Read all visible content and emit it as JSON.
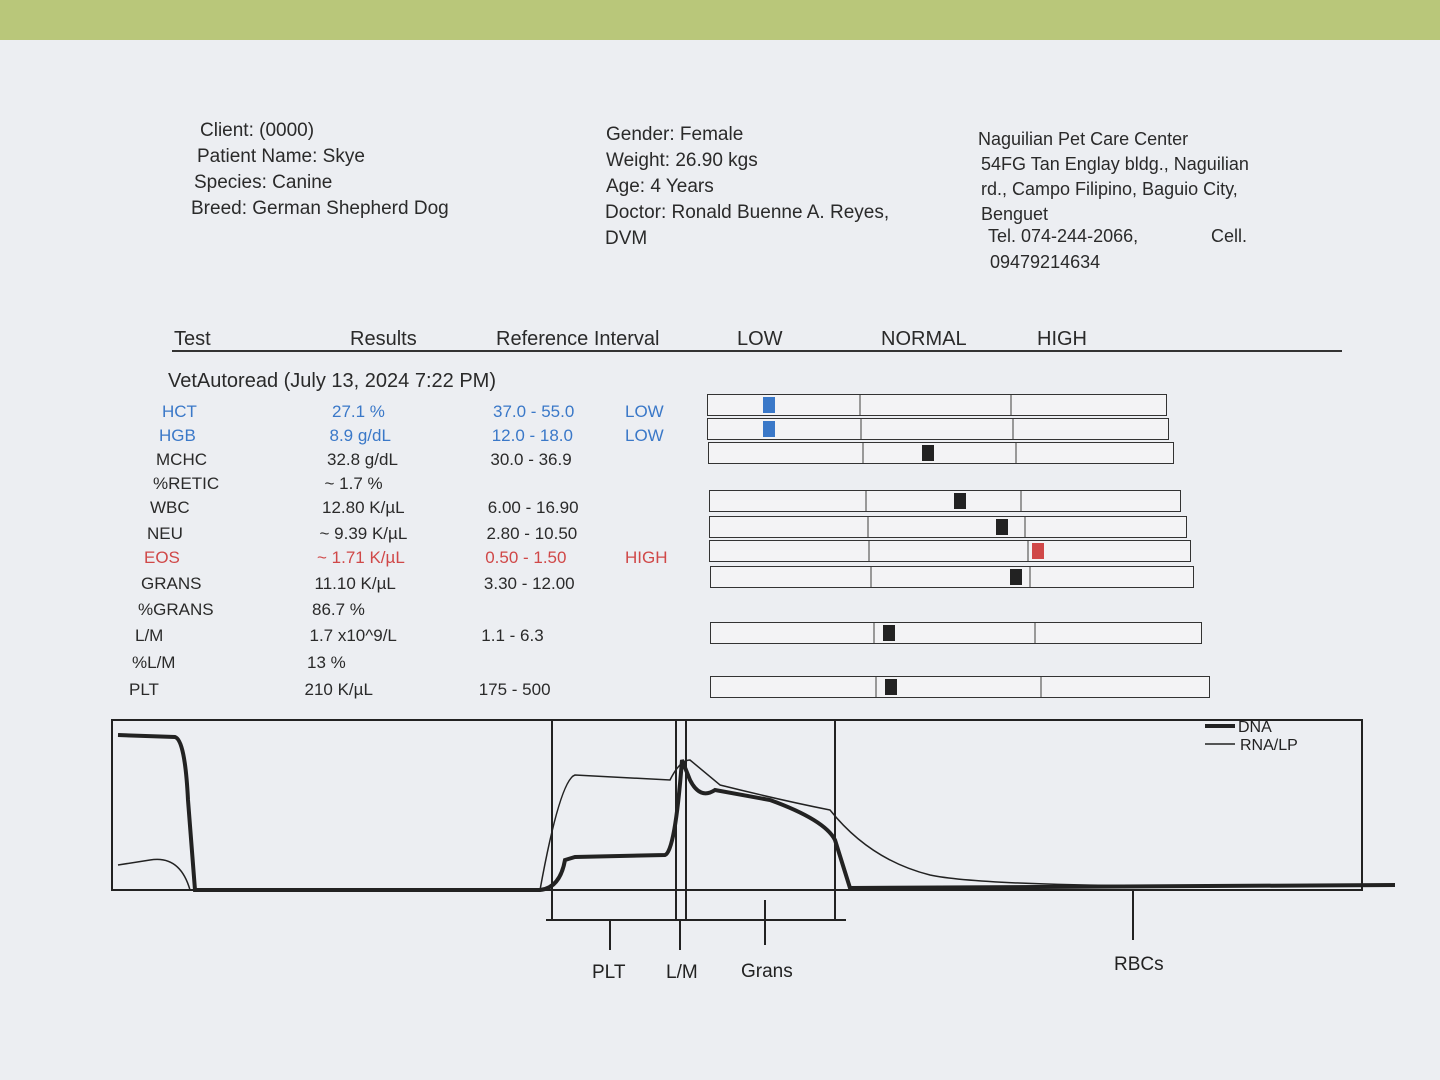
{
  "header": {
    "patient": [
      "Client:  (0000)",
      "Patient Name: Skye",
      "Species: Canine",
      "Breed: German Shepherd Dog"
    ],
    "details": [
      "Gender: Female",
      "Weight: 26.90 kgs",
      "Age: 4 Years",
      "Doctor: Ronald Buenne A. Reyes,",
      "DVM"
    ],
    "clinic": [
      "Naguilian Pet Care Center",
      "54FG Tan Englay bldg., Naguilian",
      "rd., Campo Filipino, Baguio City,",
      "Benguet"
    ],
    "tel": "Tel. 074-244-2066,",
    "cell": "Cell.",
    "cell_number": "09479214634"
  },
  "table": {
    "headers": [
      "Test",
      "Results",
      "Reference Interval",
      "LOW",
      "NORMAL",
      "HIGH"
    ],
    "section": "VetAutoread (July 13, 2024 7:22 PM)",
    "rows": [
      {
        "test": "HCT",
        "result": "27.1 %",
        "reference": "37.0 - 55.0",
        "flag": "LOW"
      },
      {
        "test": "HGB",
        "result": "8.9 g/dL",
        "reference": "12.0 - 18.0",
        "flag": "LOW"
      },
      {
        "test": "MCHC",
        "result": "32.8 g/dL",
        "reference": "30.0 - 36.9"
      },
      {
        "test": "%RETIC",
        "result": "~ 1.7 %"
      },
      {
        "test": "WBC",
        "result": "12.80 K/µL",
        "reference": "6.00 - 16.90"
      },
      {
        "test": "NEU",
        "result": "~ 9.39 K/µL",
        "reference": "2.80 - 10.50"
      },
      {
        "test": "EOS",
        "result": "~ 1.71 K/µL",
        "reference": "0.50 - 1.50",
        "flag": "HIGH"
      },
      {
        "test": "GRANS",
        "result": "11.10 K/µL",
        "reference": "3.30 - 12.00"
      },
      {
        "test": "%GRANS",
        "result": "86.7 %"
      },
      {
        "test": "L/M",
        "result": "1.7 x10^9/L",
        "reference": "1.1 - 6.3"
      },
      {
        "test": "%L/M",
        "result": "13 %"
      },
      {
        "test": "PLT",
        "result": "210 K/µL",
        "reference": "175 - 500"
      }
    ]
  },
  "histogram": {
    "legend": [
      "DNA",
      "RNA/LP"
    ],
    "labels": [
      "PLT",
      "L/M",
      "Grans",
      "RBCs"
    ]
  }
}
